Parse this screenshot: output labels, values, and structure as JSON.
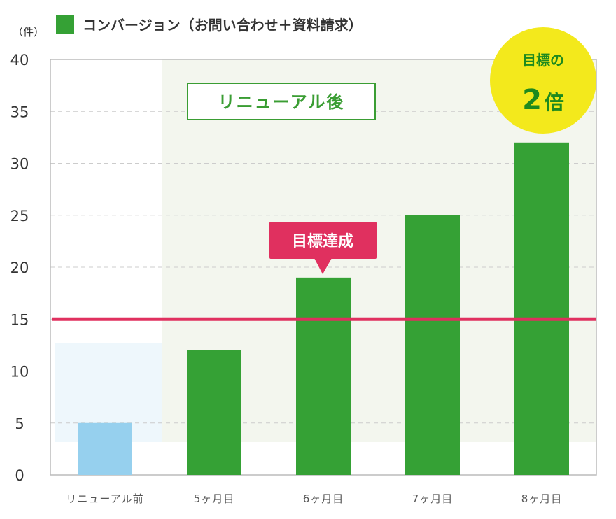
{
  "chart_data": {
    "type": "bar",
    "unit_label": "（件）",
    "legend": {
      "label": "コンバージョン（お問い合わせ＋資料請求）",
      "color": "#35a135"
    },
    "categories": [
      "リニューアル前",
      "5ヶ月目",
      "6ヶ月目",
      "7ヶ月目",
      "8ヶ月目"
    ],
    "values": [
      5,
      12,
      19,
      25,
      32
    ],
    "bar_colors": [
      "#96d0ee",
      "#35a135",
      "#35a135",
      "#35a135",
      "#35a135"
    ],
    "ylim": [
      0,
      40
    ],
    "yticks": [
      0,
      5,
      10,
      15,
      20,
      25,
      30,
      35,
      40
    ],
    "grid": true,
    "target_line": {
      "value": 15,
      "color": "#e0305f"
    },
    "annotations": {
      "after_region": "リニューアル後",
      "target_achieved": "目標達成",
      "double_line1": "目標の",
      "double_num": "2",
      "double_kanji": "倍"
    },
    "colors": {
      "after_bg": "#f3f6ee",
      "before_bg": "#eef7fc",
      "grid": "#cccccc",
      "axis": "#bbbbbb",
      "badge": "#e0305f",
      "circle": "#f3e91c",
      "box_border": "#3a9d33"
    }
  }
}
